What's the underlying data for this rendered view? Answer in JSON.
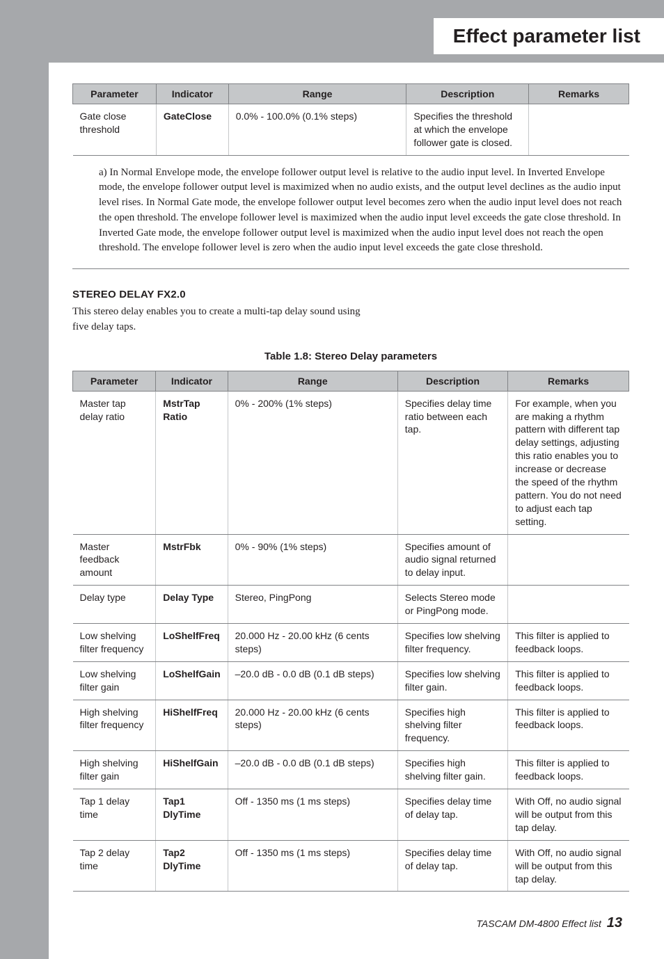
{
  "header": {
    "title": "Effect parameter list"
  },
  "table1": {
    "headers": [
      "Parameter",
      "Indicator",
      "Range",
      "Description",
      "Remarks"
    ],
    "rows": [
      {
        "parameter": "Gate close threshold",
        "indicator": "GateClose",
        "range": "0.0% - 100.0% (0.1% steps)",
        "description": "Specifies the threshold at which the envelope follower gate is closed.",
        "remarks": ""
      }
    ],
    "col_widths": [
      "15%",
      "13%",
      "32%",
      "22%",
      "18%"
    ]
  },
  "footnote": "a) In Normal Envelope mode, the envelope follower output level is relative to the audio input level. In Inverted Envelope mode, the envelope follower output level is maximized when no audio exists, and the output level declines as the audio input level rises. In Normal Gate mode, the envelope follower output level becomes zero when the audio input level does not reach the open threshold. The envelope follower level is maximized when the audio input level exceeds the gate close threshold. In Inverted Gate mode, the envelope follower output level is maximized when the audio input level does not reach the open threshold. The envelope follower level is zero when the audio input level exceeds the gate close threshold.",
  "section2": {
    "title": "STEREO DELAY FX2.0",
    "intro": "This stereo delay enables you to create a multi-tap delay sound using five delay taps."
  },
  "table2": {
    "caption": "Table 1.8: Stereo Delay parameters",
    "headers": [
      "Parameter",
      "Indicator",
      "Range",
      "Description",
      "Remarks"
    ],
    "col_widths": [
      "15%",
      "12%",
      "31%",
      "20%",
      "22%"
    ],
    "rows": [
      {
        "parameter": "Master tap delay ratio",
        "indicator": "MstrTap Ratio",
        "range": "0% - 200% (1% steps)",
        "description": "Specifies delay time ratio between each tap.",
        "remarks": "For example, when you are making a rhythm pattern with different tap delay settings, adjusting this ratio enables you to increase or decrease the speed of the rhythm pattern. You do not need to adjust each tap setting."
      },
      {
        "parameter": "Master feedback amount",
        "indicator": "MstrFbk",
        "range": "0% - 90% (1% steps)",
        "description": "Specifies amount of audio signal returned to delay input.",
        "remarks": ""
      },
      {
        "parameter": "Delay type",
        "indicator": "Delay Type",
        "range": "Stereo, PingPong",
        "description": "Selects Stereo mode or PingPong mode.",
        "remarks": ""
      },
      {
        "parameter": "Low shelving filter frequency",
        "indicator": "LoShelfFreq",
        "range": "20.000 Hz - 20.00 kHz (6 cents steps)",
        "description": "Specifies low shelving filter frequency.",
        "remarks": "This filter is applied to feedback loops."
      },
      {
        "parameter": "Low shelving filter gain",
        "indicator": "LoShelfGain",
        "range": "–20.0 dB - 0.0 dB (0.1 dB steps)",
        "description": "Specifies low shelving filter gain.",
        "remarks": "This filter is applied to feedback loops."
      },
      {
        "parameter": "High shelving filter frequency",
        "indicator": "HiShelfFreq",
        "range": "20.000 Hz - 20.00 kHz (6 cents steps)",
        "description": "Specifies high shelving filter frequency.",
        "remarks": "This filter is applied to feedback loops."
      },
      {
        "parameter": "High shelving filter gain",
        "indicator": "HiShelfGain",
        "range": "–20.0 dB - 0.0 dB (0.1 dB steps)",
        "description": "Specifies high shelving filter gain.",
        "remarks": "This filter is applied to feedback loops."
      },
      {
        "parameter": "Tap 1 delay time",
        "indicator": "Tap1 DlyTime",
        "range": "Off - 1350 ms (1 ms steps)",
        "description": "Specifies delay time of delay tap.",
        "remarks": "With Off, no audio signal will be output from this tap delay."
      },
      {
        "parameter": "Tap 2 delay time",
        "indicator": "Tap2 DlyTime",
        "range": "Off - 1350 ms (1 ms steps)",
        "description": "Specifies delay time of delay tap.",
        "remarks": "With Off, no audio signal will be output from this tap delay."
      }
    ]
  },
  "footer": {
    "text": "TASCAM DM-4800 Effect list",
    "page": "13"
  }
}
